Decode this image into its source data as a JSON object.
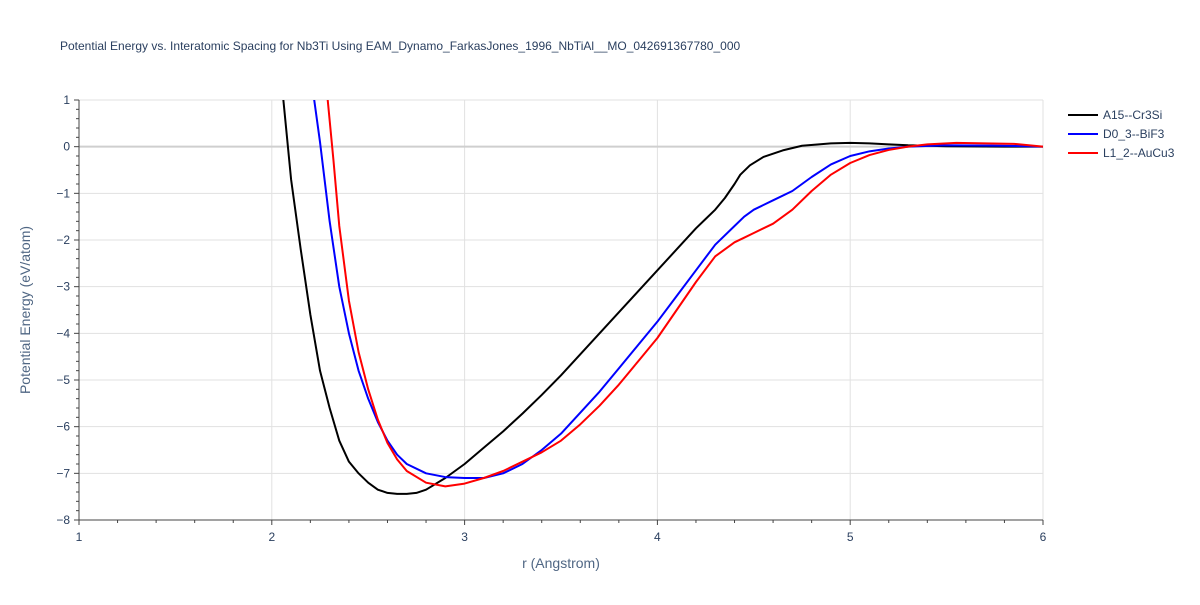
{
  "chart_data": {
    "type": "line",
    "title": "Potential Energy vs. Interatomic Spacing for Nb3Ti Using EAM_Dynamo_FarkasJones_1996_NbTiAl__MO_042691367780_000",
    "xlabel": "r (Angstrom)",
    "ylabel": "Potential Energy (eV/atom)",
    "xlim": [
      1,
      6
    ],
    "ylim": [
      -8,
      1
    ],
    "x_ticks": [
      1,
      2,
      3,
      4,
      5,
      6
    ],
    "y_ticks": [
      -8,
      -7,
      -6,
      -5,
      -4,
      -3,
      -2,
      -1,
      0,
      1
    ],
    "x_tick_labels": [
      "1",
      "2",
      "3",
      "4",
      "5",
      "6"
    ],
    "y_tick_labels": [
      "−8",
      "−7",
      "−6",
      "−5",
      "−4",
      "−3",
      "−2",
      "−1",
      "0",
      "1"
    ],
    "grid": true,
    "legend_position": "top-right",
    "series": [
      {
        "name": "A15--Cr3Si",
        "color": "#000000",
        "x": [
          2.06,
          2.1,
          2.15,
          2.2,
          2.25,
          2.3,
          2.35,
          2.4,
          2.45,
          2.5,
          2.55,
          2.6,
          2.65,
          2.7,
          2.75,
          2.8,
          2.9,
          3.0,
          3.1,
          3.2,
          3.3,
          3.4,
          3.5,
          3.6,
          3.7,
          3.8,
          3.9,
          4.0,
          4.1,
          4.2,
          4.25,
          4.3,
          4.35,
          4.4,
          4.43,
          4.48,
          4.55,
          4.65,
          4.75,
          4.9,
          5.0,
          5.1,
          5.2,
          5.3,
          5.5,
          5.8,
          6.0
        ],
        "y": [
          1.0,
          -0.7,
          -2.2,
          -3.6,
          -4.8,
          -5.6,
          -6.3,
          -6.75,
          -7.0,
          -7.2,
          -7.35,
          -7.42,
          -7.44,
          -7.44,
          -7.42,
          -7.35,
          -7.1,
          -6.8,
          -6.45,
          -6.1,
          -5.72,
          -5.32,
          -4.9,
          -4.45,
          -4.0,
          -3.55,
          -3.1,
          -2.65,
          -2.2,
          -1.75,
          -1.55,
          -1.35,
          -1.1,
          -0.8,
          -0.6,
          -0.4,
          -0.22,
          -0.08,
          0.02,
          0.07,
          0.08,
          0.07,
          0.05,
          0.03,
          0.01,
          0.0,
          0.0
        ]
      },
      {
        "name": "D0_3--BiF3",
        "color": "#0000ff",
        "x": [
          2.22,
          2.25,
          2.3,
          2.35,
          2.4,
          2.45,
          2.5,
          2.55,
          2.6,
          2.65,
          2.7,
          2.8,
          2.9,
          3.0,
          3.05,
          3.1,
          3.2,
          3.3,
          3.4,
          3.5,
          3.6,
          3.7,
          3.8,
          3.9,
          4.0,
          4.1,
          4.2,
          4.3,
          4.4,
          4.45,
          4.5,
          4.6,
          4.7,
          4.8,
          4.9,
          5.0,
          5.1,
          5.2,
          5.3,
          5.5,
          5.8,
          6.0
        ],
        "y": [
          1.0,
          0.1,
          -1.6,
          -3.0,
          -4.0,
          -4.8,
          -5.4,
          -5.9,
          -6.3,
          -6.6,
          -6.8,
          -7.0,
          -7.08,
          -7.1,
          -7.1,
          -7.1,
          -7.0,
          -6.8,
          -6.5,
          -6.15,
          -5.7,
          -5.25,
          -4.75,
          -4.25,
          -3.75,
          -3.2,
          -2.65,
          -2.1,
          -1.7,
          -1.5,
          -1.35,
          -1.15,
          -0.95,
          -0.65,
          -0.38,
          -0.2,
          -0.1,
          -0.04,
          0.0,
          0.03,
          0.02,
          0.0
        ]
      },
      {
        "name": "L1_2--AuCu3",
        "color": "#ff0000",
        "x": [
          2.29,
          2.32,
          2.35,
          2.4,
          2.45,
          2.5,
          2.55,
          2.6,
          2.65,
          2.7,
          2.8,
          2.9,
          3.0,
          3.1,
          3.2,
          3.3,
          3.4,
          3.5,
          3.6,
          3.7,
          3.8,
          3.9,
          4.0,
          4.1,
          4.2,
          4.3,
          4.4,
          4.45,
          4.5,
          4.6,
          4.7,
          4.8,
          4.9,
          5.0,
          5.1,
          5.2,
          5.3,
          5.4,
          5.55,
          5.7,
          5.85,
          6.0
        ],
        "y": [
          1.0,
          -0.3,
          -1.7,
          -3.3,
          -4.4,
          -5.2,
          -5.85,
          -6.35,
          -6.7,
          -6.95,
          -7.2,
          -7.28,
          -7.22,
          -7.1,
          -6.95,
          -6.75,
          -6.55,
          -6.3,
          -5.95,
          -5.55,
          -5.1,
          -4.6,
          -4.1,
          -3.5,
          -2.9,
          -2.35,
          -2.05,
          -1.95,
          -1.85,
          -1.65,
          -1.35,
          -0.95,
          -0.6,
          -0.35,
          -0.18,
          -0.07,
          0.0,
          0.05,
          0.08,
          0.07,
          0.06,
          0.0
        ]
      }
    ]
  }
}
